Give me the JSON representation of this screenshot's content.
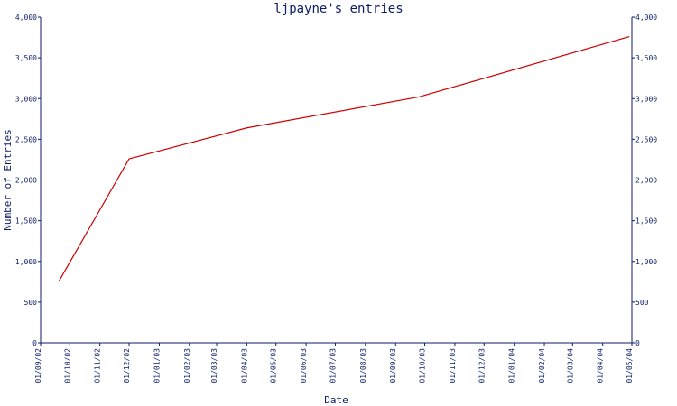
{
  "chart_data": {
    "type": "line",
    "title": "ljpayne's entries",
    "xlabel": "Date",
    "ylabel": "Number of Entries",
    "x_ticks": [
      "01/09/02",
      "01/10/02",
      "01/11/02",
      "01/12/02",
      "01/01/03",
      "01/02/03",
      "01/03/03",
      "01/04/03",
      "01/05/03",
      "01/06/03",
      "01/07/03",
      "01/08/03",
      "01/09/03",
      "01/10/03",
      "01/11/03",
      "01/12/03",
      "01/01/04",
      "01/02/04",
      "01/03/04",
      "01/04/04",
      "01/05/04"
    ],
    "y_ticks": [
      "0",
      "500",
      "1,000",
      "1,500",
      "2,000",
      "2,500",
      "3,000",
      "3,500",
      "4,000"
    ],
    "ylim": [
      0,
      4000
    ],
    "grid": false,
    "series": [
      {
        "x": [
          "2002-09-20",
          "2002-12-01",
          "2003-04-01",
          "2003-09-25",
          "2004-04-28"
        ],
        "y": [
          760,
          2260,
          2640,
          3020,
          3760
        ]
      }
    ],
    "colors": {
      "line": "#cc0000",
      "axis": "#0b1d66",
      "background": "#ffffff"
    }
  }
}
